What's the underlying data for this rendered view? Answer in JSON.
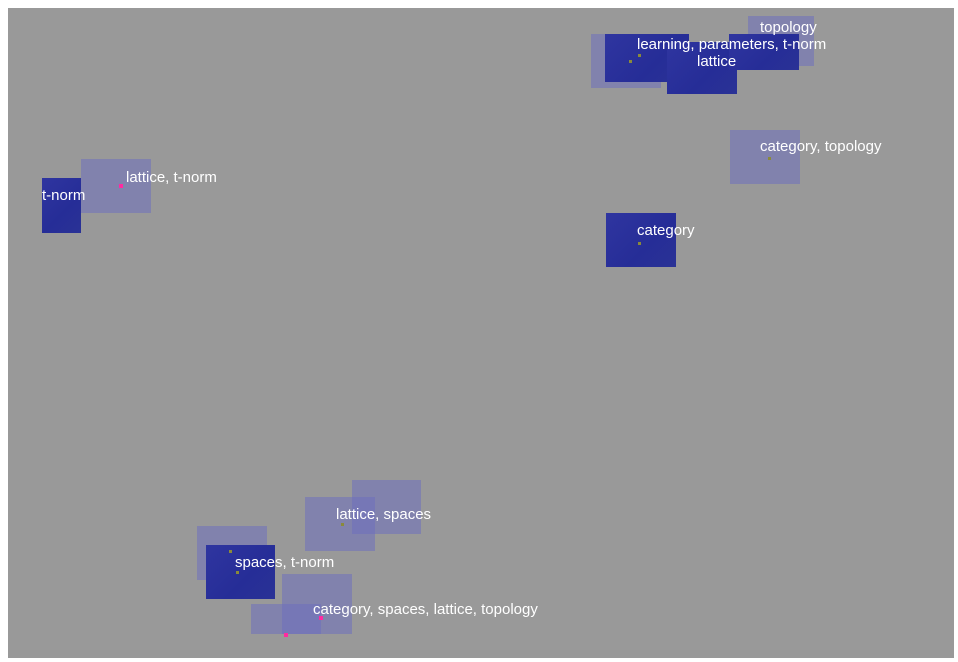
{
  "map": {
    "background": "#999999",
    "node_color_solid": "#262d97",
    "node_color_faded": "#6e70be",
    "marker_color": "#ff2aa0",
    "labels": {
      "topology": "topology",
      "learning": "learning, parameters, t-norm",
      "lattice_top": "lattice",
      "category_topology": "category, topology",
      "category": "category",
      "lattice_tnorm": "lattice, t-norm",
      "tnorm": "t-norm",
      "lattice_spaces": "lattice, spaces",
      "spaces_tnorm": "spaces, t-norm",
      "category_spaces": "category, spaces, lattice, topology"
    }
  }
}
